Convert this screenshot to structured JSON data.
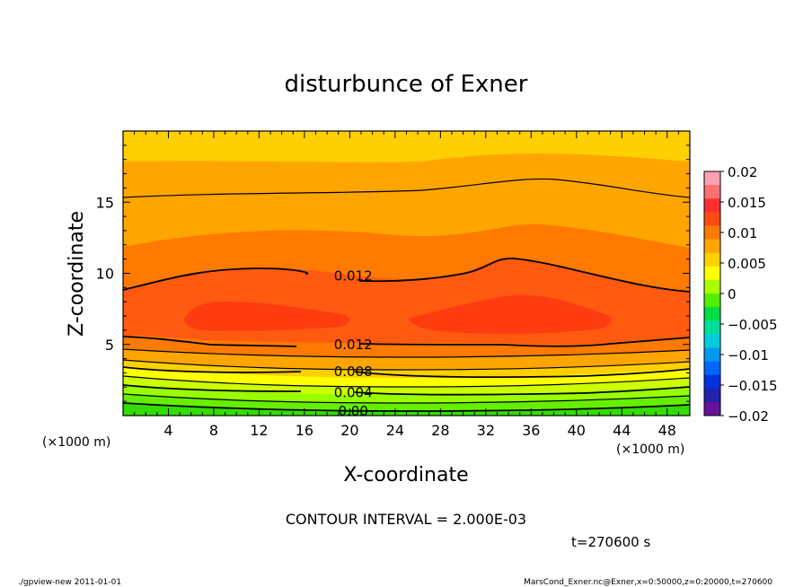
{
  "chart_data": {
    "type": "contour",
    "title": "disturbunce of Exner",
    "xlabel": "X-coordinate",
    "ylabel": "Z-coordinate",
    "x_unit_left": "(×1000 m)",
    "x_unit_right": "(×1000 m)",
    "xlim": [
      0,
      50
    ],
    "ylim": [
      0,
      20
    ],
    "xticks": [
      4,
      8,
      12,
      16,
      20,
      24,
      28,
      32,
      36,
      40,
      44,
      48
    ],
    "yticks": [
      5,
      10,
      15
    ],
    "contour_interval_label": "CONTOUR INTERVAL = 2.000E-03",
    "time_label": "t=270600 s",
    "colorbar": {
      "ticks": [
        "0.02",
        "0.015",
        "0.01",
        "0.005",
        "0",
        "−0.005",
        "−0.01",
        "−0.015",
        "−0.02"
      ],
      "colors": [
        "#ffa0b4",
        "#ff7070",
        "#ff3030",
        "#ff4a14",
        "#ff7a00",
        "#ffa500",
        "#ffd000",
        "#ffff00",
        "#aaff00",
        "#55ee00",
        "#00dd44",
        "#00dd99",
        "#00ccdd",
        "#0099ee",
        "#0066ff",
        "#0033dd",
        "#2222aa",
        "#661199"
      ]
    },
    "labeled_contours": [
      {
        "value": "0.012",
        "x": 20.3,
        "z": 9.8
      },
      {
        "value": "0.012",
        "x": 20.3,
        "z": 5.0
      },
      {
        "value": "0.008",
        "x": 20.3,
        "z": 3.1
      },
      {
        "value": "0.004",
        "x": 20.3,
        "z": 1.6
      },
      {
        "value": "0.00",
        "x": 20.3,
        "z": 0.3
      }
    ]
  },
  "footer": {
    "left": "./gpview-new   2011-01-01",
    "right": "MarsCond_Exner.nc@Exner,x=0:50000,z=0:20000,t=270600"
  }
}
